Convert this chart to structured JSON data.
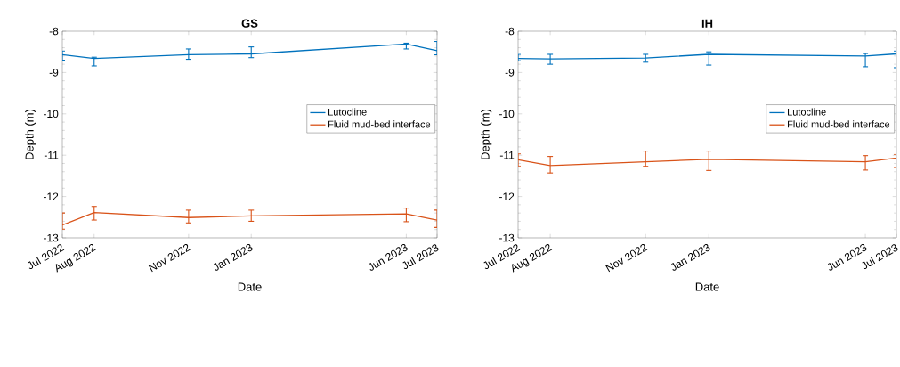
{
  "chart_data": [
    {
      "type": "line",
      "title": "GS",
      "xlabel": "Date",
      "ylabel": "Depth (m)",
      "legend": "top right",
      "x": [
        "2022-07",
        "2022-08",
        "2022-11",
        "2023-01",
        "2023-06",
        "2023-07"
      ],
      "xlim": [
        "2022-07",
        "2023-07"
      ],
      "xticks": [
        {
          "value": "2022-07",
          "label": "Jul 2022"
        },
        {
          "value": "2022-08",
          "label": "Aug 2022"
        },
        {
          "value": "2022-11",
          "label": "Nov 2022"
        },
        {
          "value": "2023-01",
          "label": "Jan 2023"
        },
        {
          "value": "2023-06",
          "label": "Jun 2023"
        },
        {
          "value": "2023-07",
          "label": "Jul 2023"
        }
      ],
      "ylim": [
        -13,
        -8
      ],
      "yticks": [
        -13,
        -12,
        -11,
        -10,
        -9,
        -8
      ],
      "series": [
        {
          "name": "Lutocline",
          "color": "#0072bd",
          "values": [
            -8.57,
            -8.66,
            -8.57,
            -8.55,
            -8.31,
            -8.47
          ],
          "errors": [
            [
              -8.7,
              -8.48
            ],
            [
              -8.84,
              -8.63
            ],
            [
              -8.68,
              -8.43
            ],
            [
              -8.64,
              -8.38
            ],
            [
              -8.43,
              -8.29
            ],
            [
              -8.57,
              -8.25
            ]
          ]
        },
        {
          "name": "Fluid mud-bed interface",
          "color": "#d95319",
          "values": [
            -12.69,
            -12.39,
            -12.51,
            -12.47,
            -12.42,
            -12.57
          ],
          "errors": [
            [
              -12.79,
              -12.4
            ],
            [
              -12.57,
              -12.24
            ],
            [
              -12.64,
              -12.33
            ],
            [
              -12.6,
              -12.33
            ],
            [
              -12.61,
              -12.28
            ],
            [
              -12.75,
              -12.33
            ]
          ]
        }
      ]
    },
    {
      "type": "line",
      "title": "IH",
      "xlabel": "Date",
      "ylabel": "Depth (m)",
      "legend": "top right",
      "x": [
        "2022-07",
        "2022-08",
        "2022-11",
        "2023-01",
        "2023-06",
        "2023-07"
      ],
      "xlim": [
        "2022-07",
        "2023-07"
      ],
      "xticks": [
        {
          "value": "2022-07",
          "label": "Jul 2022"
        },
        {
          "value": "2022-08",
          "label": "Aug 2022"
        },
        {
          "value": "2022-11",
          "label": "Nov 2022"
        },
        {
          "value": "2023-01",
          "label": "Jan 2023"
        },
        {
          "value": "2023-06",
          "label": "Jun 2023"
        },
        {
          "value": "2023-07",
          "label": "Jul 2023"
        }
      ],
      "ylim": [
        -13,
        -8
      ],
      "yticks": [
        -13,
        -12,
        -11,
        -10,
        -9,
        -8
      ],
      "series": [
        {
          "name": "Lutocline",
          "color": "#0072bd",
          "values": [
            -8.66,
            -8.67,
            -8.65,
            -8.56,
            -8.6,
            -8.55
          ],
          "errors": [
            [
              -8.71,
              -8.56
            ],
            [
              -8.8,
              -8.56
            ],
            [
              -8.75,
              -8.56
            ],
            [
              -8.82,
              -8.5
            ],
            [
              -8.86,
              -8.54
            ],
            [
              -8.88,
              -8.48
            ]
          ]
        },
        {
          "name": "Fluid mud-bed interface",
          "color": "#d95319",
          "values": [
            -11.11,
            -11.25,
            -11.16,
            -11.1,
            -11.16,
            -11.07
          ],
          "errors": [
            [
              -11.26,
              -10.97
            ],
            [
              -11.43,
              -11.03
            ],
            [
              -11.27,
              -10.9
            ],
            [
              -11.37,
              -10.9
            ],
            [
              -11.36,
              -11.01
            ],
            [
              -11.3,
              -10.98
            ]
          ]
        }
      ]
    }
  ]
}
